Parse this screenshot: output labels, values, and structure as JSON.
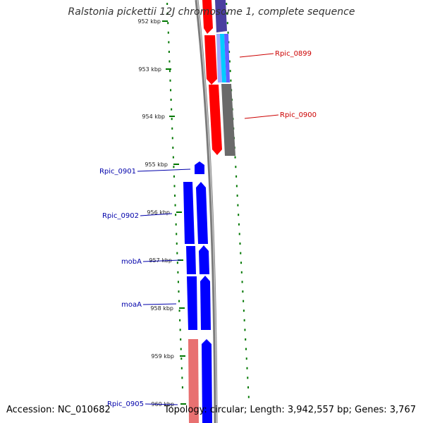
{
  "title": "Ralstonia pickettii 12J chromosome 1, complete sequence",
  "footer": {
    "accession": "Accession: NC_010682",
    "summary": "Topology: circular; Length: 3,942,557 bp; Genes: 3,767"
  },
  "colors": {
    "forward_gene": "#ff0000",
    "reverse_gene": "#0000ff",
    "pseudo_or_other": "#666666",
    "highlight_cyan": "#00ccff",
    "pink_gene": "#e87070",
    "tick": "#007700",
    "forward_label": "#cc0000",
    "reverse_label": "#0000aa"
  },
  "ticks": [
    "952 kbp",
    "953 kbp",
    "954 kbp",
    "955 kbp",
    "956 kbp",
    "957 kbp",
    "958 kbp",
    "959 kbp",
    "960 kbp"
  ],
  "gene_labels": {
    "forward": [
      "Rpic_0899",
      "Rpic_0900"
    ],
    "reverse": [
      "Rpic_0901",
      "Rpic_0902",
      "mobA",
      "moaA",
      "Rpic_0905"
    ]
  }
}
